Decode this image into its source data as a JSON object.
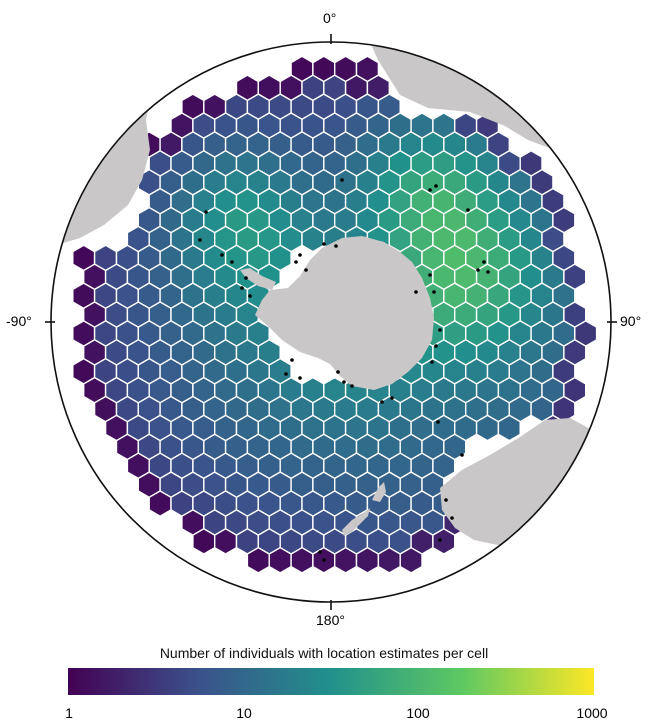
{
  "map": {
    "projection": "south-polar-stereographic",
    "graticule_labels": {
      "top": "0°",
      "bottom": "180°",
      "left": "-90°",
      "right": "90°"
    },
    "colors": {
      "land": "#c9c7c8",
      "frame": "#111111",
      "hex_stroke": "#ffffff",
      "tracking_dots": "#000000"
    }
  },
  "legend": {
    "title": "Number of individuals with location estimates per cell",
    "scale": "log10",
    "range": [
      1,
      1000
    ],
    "ticks": [
      "1",
      "10",
      "100",
      "1000"
    ],
    "palette": [
      "#440154",
      "#3b528b",
      "#21918c",
      "#5ec962",
      "#fde725"
    ]
  }
}
